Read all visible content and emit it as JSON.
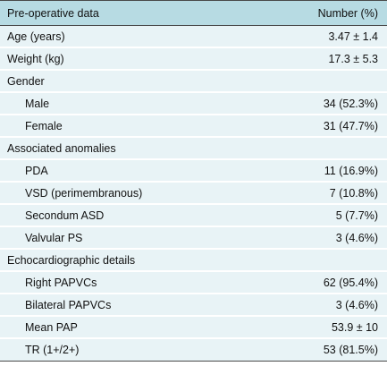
{
  "header": {
    "label": "Pre-operative data",
    "value": "Number (%)"
  },
  "rows": [
    {
      "label": "Age (years)",
      "value": "3.47 ± 1.4"
    },
    {
      "label": "Weight (kg)",
      "value": "17.3 ± 5.3"
    },
    {
      "label": "Gender",
      "value": ""
    },
    {
      "label": "Male",
      "value": "34 (52.3%)"
    },
    {
      "label": "Female",
      "value": "31 (47.7%)"
    },
    {
      "label": "Associated anomalies",
      "value": ""
    },
    {
      "label": "PDA",
      "value": "11 (16.9%)"
    },
    {
      "label": "VSD (perimembranous)",
      "value": "7 (10.8%)"
    },
    {
      "label": "Secondum ASD",
      "value": "5 (7.7%)"
    },
    {
      "label": "Valvular PS",
      "value": "3 (4.6%)"
    },
    {
      "label": "Echocardiographic details",
      "value": ""
    },
    {
      "label": "Right PAPVCs",
      "value": "62 (95.4%)"
    },
    {
      "label": "Bilateral PAPVCs",
      "value": "3 (4.6%)"
    },
    {
      "label": "Mean PAP",
      "value": "53.9 ± 10"
    },
    {
      "label": "TR (1+/2+)",
      "value": "53 (81.5%)"
    }
  ]
}
